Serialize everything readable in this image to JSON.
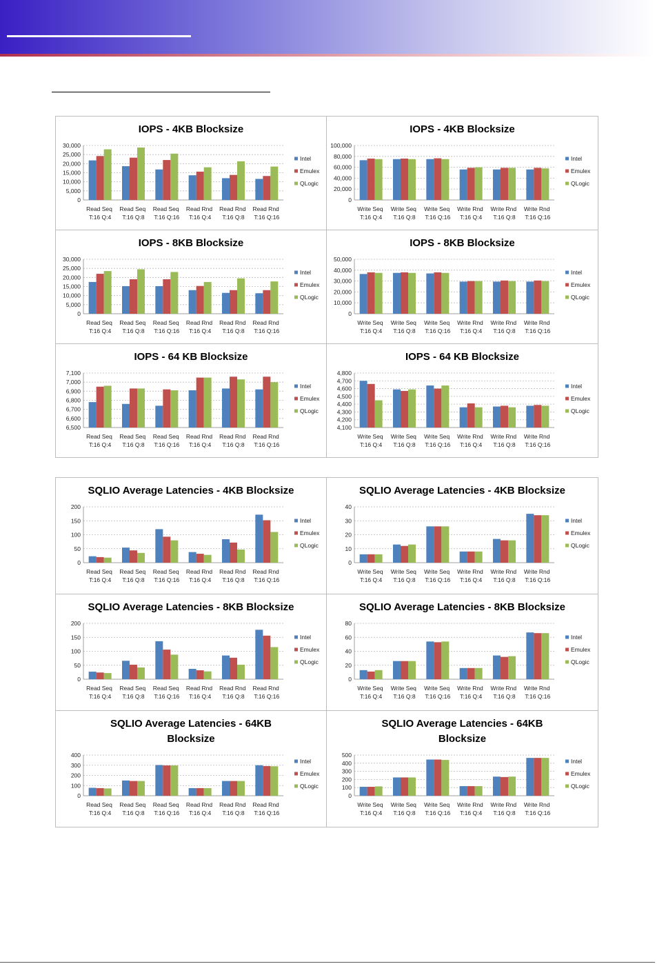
{
  "chart_data": [
    {
      "type": "bar",
      "title": "IOPS - 4KB Blocksize",
      "categories": [
        "Read Seq T:16 Q:4",
        "Read Seq T:16 Q:8",
        "Read Seq T:16 Q:16",
        "Read Rnd T:16 Q:4",
        "Read Rnd T:16 Q:8",
        "Read Rnd T:16 Q:16"
      ],
      "series": [
        {
          "name": "Intel",
          "color": "#4f81bd",
          "values": [
            21800,
            18600,
            16800,
            13600,
            12000,
            11600
          ]
        },
        {
          "name": "Emulex",
          "color": "#c0504d",
          "values": [
            24200,
            23300,
            22000,
            15600,
            13800,
            13200
          ]
        },
        {
          "name": "QLogic",
          "color": "#9bbb59",
          "values": [
            27900,
            28900,
            25500,
            18000,
            21300,
            18400
          ]
        }
      ],
      "ylim": [
        0,
        30000
      ],
      "yticks": [
        0,
        {
          "value": 5000,
          "label": "5,000"
        },
        {
          "value": 10000,
          "label": "10,000"
        },
        {
          "value": 15000,
          "label": "15,000"
        },
        {
          "value": 20000,
          "label": "20,000"
        },
        {
          "value": 25000,
          "label": "25,000"
        },
        {
          "value": 30000,
          "label": "30,000"
        }
      ],
      "grid": true,
      "legend": "right"
    },
    {
      "type": "bar",
      "title": "IOPS - 4KB Blocksize",
      "categories": [
        "Write Seq T:16 Q:4",
        "Write Seq T:16 Q:8",
        "Write Seq T:16 Q:16",
        "Write Rnd T:16 Q:4",
        "Write Rnd T:16 Q:8",
        "Write Rnd T:16 Q:16"
      ],
      "series": [
        {
          "name": "Intel",
          "color": "#4f81bd",
          "values": [
            73000,
            75000,
            75000,
            56000,
            56000,
            56000
          ]
        },
        {
          "name": "Emulex",
          "color": "#c0504d",
          "values": [
            76000,
            76000,
            76500,
            59000,
            59000,
            59000
          ]
        },
        {
          "name": "QLogic",
          "color": "#9bbb59",
          "values": [
            75000,
            75000,
            75000,
            60000,
            59000,
            58000
          ]
        }
      ],
      "ylim": [
        0,
        100000
      ],
      "yticks": [
        0,
        {
          "value": 20000,
          "label": "20,000"
        },
        {
          "value": 40000,
          "label": "40,000"
        },
        {
          "value": 60000,
          "label": "60,000"
        },
        {
          "value": 80000,
          "label": "80,000"
        },
        {
          "value": 100000,
          "label": "100,000"
        }
      ],
      "grid": true,
      "legend": "right"
    },
    {
      "type": "bar",
      "title": "IOPS - 8KB Blocksize",
      "categories": [
        "Read Seq T:16 Q:4",
        "Read Seq T:16 Q:8",
        "Read Seq T:16 Q:16",
        "Read Rnd T:16 Q:4",
        "Read Rnd T:16 Q:8",
        "Read Rnd T:16 Q:16"
      ],
      "series": [
        {
          "name": "Intel",
          "color": "#4f81bd",
          "values": [
            17500,
            15200,
            15200,
            13000,
            11500,
            11300
          ]
        },
        {
          "name": "Emulex",
          "color": "#c0504d",
          "values": [
            22000,
            19000,
            19000,
            15300,
            13000,
            13000
          ]
        },
        {
          "name": "QLogic",
          "color": "#9bbb59",
          "values": [
            23500,
            24500,
            23000,
            17500,
            19500,
            17800
          ]
        }
      ],
      "ylim": [
        0,
        30000
      ],
      "yticks": [
        0,
        {
          "value": 5000,
          "label": "5,000"
        },
        {
          "value": 10000,
          "label": "10,000"
        },
        {
          "value": 15000,
          "label": "15,000"
        },
        {
          "value": 20000,
          "label": "20,000"
        },
        {
          "value": 25000,
          "label": "25,000"
        },
        {
          "value": 30000,
          "label": "30,000"
        }
      ],
      "grid": true,
      "legend": "right"
    },
    {
      "type": "bar",
      "title": "IOPS - 8KB Blocksize",
      "categories": [
        "Write Seq T:16 Q:4",
        "Write Seq T:16 Q:8",
        "Write Seq T:16 Q:16",
        "Write Rnd T:16 Q:4",
        "Write Rnd T:16 Q:8",
        "Write Rnd T:16 Q:16"
      ],
      "series": [
        {
          "name": "Intel",
          "color": "#4f81bd",
          "values": [
            36500,
            37500,
            37000,
            29500,
            29500,
            29500
          ]
        },
        {
          "name": "Emulex",
          "color": "#c0504d",
          "values": [
            38000,
            38000,
            38000,
            30000,
            30500,
            30500
          ]
        },
        {
          "name": "QLogic",
          "color": "#9bbb59",
          "values": [
            37500,
            37500,
            37500,
            30000,
            30000,
            30000
          ]
        }
      ],
      "ylim": [
        0,
        50000
      ],
      "yticks": [
        0,
        {
          "value": 10000,
          "label": "10,000"
        },
        {
          "value": 20000,
          "label": "20,000"
        },
        {
          "value": 30000,
          "label": "30,000"
        },
        {
          "value": 40000,
          "label": "40,000"
        },
        {
          "value": 50000,
          "label": "50,000"
        }
      ],
      "grid": true,
      "legend": "right"
    },
    {
      "type": "bar",
      "title": "IOPS - 64 KB Blocksize",
      "categories": [
        "Read Seq T:16 Q:4",
        "Read Seq T:16 Q:8",
        "Read Seq T:16 Q:16",
        "Read Rnd T:16 Q:4",
        "Read Rnd T:16 Q:8",
        "Read Rnd T:16 Q:16"
      ],
      "series": [
        {
          "name": "Intel",
          "color": "#4f81bd",
          "values": [
            6780,
            6760,
            6740,
            6910,
            6930,
            6920
          ]
        },
        {
          "name": "Emulex",
          "color": "#c0504d",
          "values": [
            6950,
            6930,
            6920,
            7050,
            7060,
            7060
          ]
        },
        {
          "name": "QLogic",
          "color": "#9bbb59",
          "values": [
            6960,
            6930,
            6910,
            7050,
            7030,
            7000
          ]
        }
      ],
      "ylim": [
        6500,
        7100
      ],
      "yticks": [
        {
          "value": 6500,
          "label": "6,500"
        },
        {
          "value": 6600,
          "label": "6,600"
        },
        {
          "value": 6700,
          "label": "6,700"
        },
        {
          "value": 6800,
          "label": "6,800"
        },
        {
          "value": 6900,
          "label": "6,900"
        },
        {
          "value": 7000,
          "label": "7,000"
        },
        {
          "value": 7100,
          "label": "7,100"
        }
      ],
      "grid": true,
      "legend": "right"
    },
    {
      "type": "bar",
      "title": "IOPS - 64 KB Blocksize",
      "categories": [
        "Write Seq T:16 Q:4",
        "Write Seq T:16 Q:8",
        "Write Seq T:16 Q:16",
        "Write Rnd T:16 Q:4",
        "Write Rnd T:16 Q:8",
        "Write Rnd T:16 Q:16"
      ],
      "series": [
        {
          "name": "Intel",
          "color": "#4f81bd",
          "values": [
            4700,
            4590,
            4640,
            4360,
            4370,
            4380
          ]
        },
        {
          "name": "Emulex",
          "color": "#c0504d",
          "values": [
            4660,
            4570,
            4600,
            4410,
            4380,
            4390
          ]
        },
        {
          "name": "QLogic",
          "color": "#9bbb59",
          "values": [
            4450,
            4590,
            4640,
            4360,
            4360,
            4380
          ]
        }
      ],
      "ylim": [
        4100,
        4800
      ],
      "yticks": [
        {
          "value": 4100,
          "label": "4,100"
        },
        {
          "value": 4200,
          "label": "4,200"
        },
        {
          "value": 4300,
          "label": "4,300"
        },
        {
          "value": 4400,
          "label": "4,400"
        },
        {
          "value": 4500,
          "label": "4,500"
        },
        {
          "value": 4600,
          "label": "4,600"
        },
        {
          "value": 4700,
          "label": "4,700"
        },
        {
          "value": 4800,
          "label": "4,800"
        }
      ],
      "grid": true,
      "legend": "right"
    },
    {
      "type": "bar",
      "title": "SQLIO Average Latencies - 4KB Blocksize",
      "categories": [
        "Read Seq T:16 Q:4",
        "Read Seq T:16 Q:8",
        "Read Seq T:16 Q:16",
        "Read Rnd T:16 Q:4",
        "Read Rnd T:16 Q:8",
        "Read Rnd T:16 Q:16"
      ],
      "series": [
        {
          "name": "Intel",
          "color": "#4f81bd",
          "values": [
            23,
            54,
            120,
            38,
            84,
            172
          ]
        },
        {
          "name": "Emulex",
          "color": "#c0504d",
          "values": [
            20,
            44,
            93,
            32,
            72,
            152
          ]
        },
        {
          "name": "QLogic",
          "color": "#9bbb59",
          "values": [
            18,
            35,
            80,
            28,
            47,
            110
          ]
        }
      ],
      "ylim": [
        0,
        200
      ],
      "yticks": [
        0,
        50,
        100,
        150,
        200
      ],
      "grid": true,
      "legend": "right"
    },
    {
      "type": "bar",
      "title": "SQLIO Average Latencies - 4KB Blocksize",
      "categories": [
        "Write Seq T:16 Q:4",
        "Write Seq T:16 Q:8",
        "Write Seq T:16 Q:16",
        "Write Rnd T:16 Q:4",
        "Write Rnd T:16 Q:8",
        "Write Rnd T:16 Q:16"
      ],
      "series": [
        {
          "name": "Intel",
          "color": "#4f81bd",
          "values": [
            6,
            13,
            26,
            8,
            17,
            35
          ]
        },
        {
          "name": "Emulex",
          "color": "#c0504d",
          "values": [
            6,
            12,
            26,
            8,
            16,
            34
          ]
        },
        {
          "name": "QLogic",
          "color": "#9bbb59",
          "values": [
            6,
            13,
            26,
            8,
            16,
            34
          ]
        }
      ],
      "ylim": [
        0,
        40
      ],
      "yticks": [
        0,
        10,
        20,
        30,
        40
      ],
      "grid": true,
      "legend": "right"
    },
    {
      "type": "bar",
      "title": "SQLIO Average Latencies - 8KB Blocksize",
      "categories": [
        "Read Seq T:16 Q:4",
        "Read Seq T:16 Q:8",
        "Read Seq T:16 Q:16",
        "Read Rnd T:16 Q:4",
        "Read Rnd T:16 Q:8",
        "Read Rnd T:16 Q:16"
      ],
      "series": [
        {
          "name": "Intel",
          "color": "#4f81bd",
          "values": [
            27,
            66,
            136,
            37,
            85,
            177
          ]
        },
        {
          "name": "Emulex",
          "color": "#c0504d",
          "values": [
            24,
            52,
            106,
            32,
            77,
            156
          ]
        },
        {
          "name": "QLogic",
          "color": "#9bbb59",
          "values": [
            22,
            42,
            88,
            28,
            52,
            115
          ]
        }
      ],
      "ylim": [
        0,
        200
      ],
      "yticks": [
        0,
        50,
        100,
        150,
        200
      ],
      "grid": true,
      "legend": "right"
    },
    {
      "type": "bar",
      "title": "SQLIO Average Latencies - 8KB Blocksize",
      "categories": [
        "Write Seq T:16 Q:4",
        "Write Seq T:16 Q:8",
        "Write Seq T:16 Q:16",
        "Write Rnd T:16 Q:4",
        "Write Rnd T:16 Q:8",
        "Write Rnd T:16 Q:16"
      ],
      "series": [
        {
          "name": "Intel",
          "color": "#4f81bd",
          "values": [
            13,
            26,
            54,
            16,
            34,
            67
          ]
        },
        {
          "name": "Emulex",
          "color": "#c0504d",
          "values": [
            11,
            26,
            53,
            16,
            32,
            66
          ]
        },
        {
          "name": "QLogic",
          "color": "#9bbb59",
          "values": [
            13,
            26,
            54,
            16,
            33,
            66
          ]
        }
      ],
      "ylim": [
        0,
        80
      ],
      "yticks": [
        0,
        20,
        40,
        60,
        80
      ],
      "grid": true,
      "legend": "right"
    },
    {
      "type": "bar",
      "title": "SQLIO Average Latencies - 64KB Blocksize",
      "categories": [
        "Read Seq T:16 Q:4",
        "Read Seq T:16 Q:8",
        "Read Seq T:16 Q:16",
        "Read Rnd T:16 Q:4",
        "Read Rnd T:16 Q:8",
        "Read Rnd T:16 Q:16"
      ],
      "series": [
        {
          "name": "Intel",
          "color": "#4f81bd",
          "values": [
            78,
            150,
            302,
            75,
            145,
            300
          ]
        },
        {
          "name": "Emulex",
          "color": "#c0504d",
          "values": [
            75,
            145,
            298,
            75,
            145,
            292
          ]
        },
        {
          "name": "QLogic",
          "color": "#9bbb59",
          "values": [
            72,
            145,
            298,
            75,
            145,
            290
          ]
        }
      ],
      "ylim": [
        0,
        400
      ],
      "yticks": [
        0,
        100,
        200,
        300,
        400
      ],
      "grid": true,
      "legend": "right"
    },
    {
      "type": "bar",
      "title": "SQLIO Average Latencies - 64KB Blocksize",
      "categories": [
        "Write Seq T:16 Q:4",
        "Write Seq T:16 Q:8",
        "Write Seq T:16 Q:16",
        "Write Rnd T:16 Q:4",
        "Write Rnd T:16 Q:8",
        "Write Rnd T:16 Q:16"
      ],
      "series": [
        {
          "name": "Intel",
          "color": "#4f81bd",
          "values": [
            110,
            225,
            445,
            118,
            235,
            465
          ]
        },
        {
          "name": "Emulex",
          "color": "#c0504d",
          "values": [
            110,
            225,
            445,
            118,
            230,
            465
          ]
        },
        {
          "name": "QLogic",
          "color": "#9bbb59",
          "values": [
            115,
            225,
            440,
            118,
            235,
            465
          ]
        }
      ],
      "ylim": [
        0,
        500
      ],
      "yticks": [
        0,
        100,
        200,
        300,
        400,
        500
      ],
      "grid": true,
      "legend": "right"
    }
  ]
}
